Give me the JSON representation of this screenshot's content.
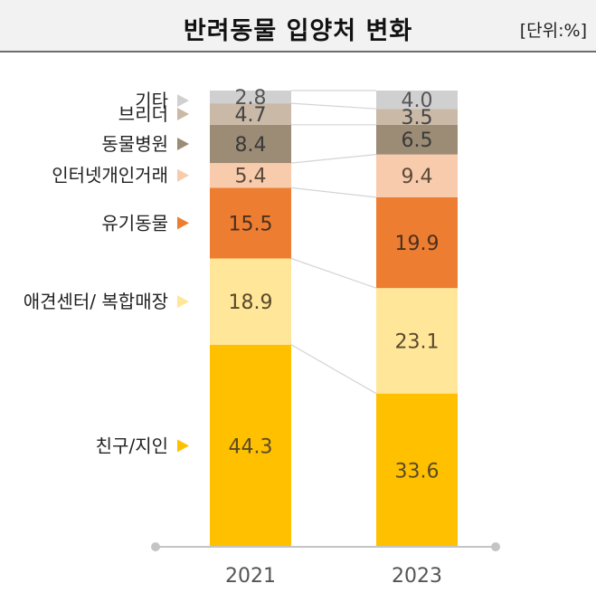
{
  "header": {
    "title": "반려동물 입양처 변화",
    "unit": "[단위:%]"
  },
  "chart_data": {
    "type": "bar",
    "stacked": true,
    "title": "반려동물 입양처 변화",
    "unit": "[단위:%]",
    "categories": [
      "2021",
      "2023"
    ],
    "series": [
      {
        "name": "친구/지인",
        "values": [
          44.3,
          33.6
        ],
        "color": "#ffc000",
        "label_color": "#5a4a2a"
      },
      {
        "name": "애견센터/ 복합매장",
        "values": [
          18.9,
          23.1
        ],
        "color": "#ffe699",
        "label_color": "#5a4a2a"
      },
      {
        "name": "유기동물",
        "values": [
          15.5,
          19.9
        ],
        "color": "#ed7d31",
        "label_color": "#4a3020"
      },
      {
        "name": "인터넷개인거래",
        "values": [
          5.4,
          9.4
        ],
        "color": "#f8cbad",
        "label_color": "#5a4a3a"
      },
      {
        "name": "동물병원",
        "values": [
          8.4,
          6.5
        ],
        "color": "#9c8b75",
        "label_color": "#3a3a3a"
      },
      {
        "name": "브리더",
        "values": [
          4.7,
          3.5
        ],
        "color": "#c9b9a6",
        "label_color": "#444444"
      },
      {
        "name": "기타",
        "values": [
          2.8,
          4.0
        ],
        "color": "#d0d0d0",
        "label_color": "#555555"
      }
    ],
    "legend": "left"
  }
}
